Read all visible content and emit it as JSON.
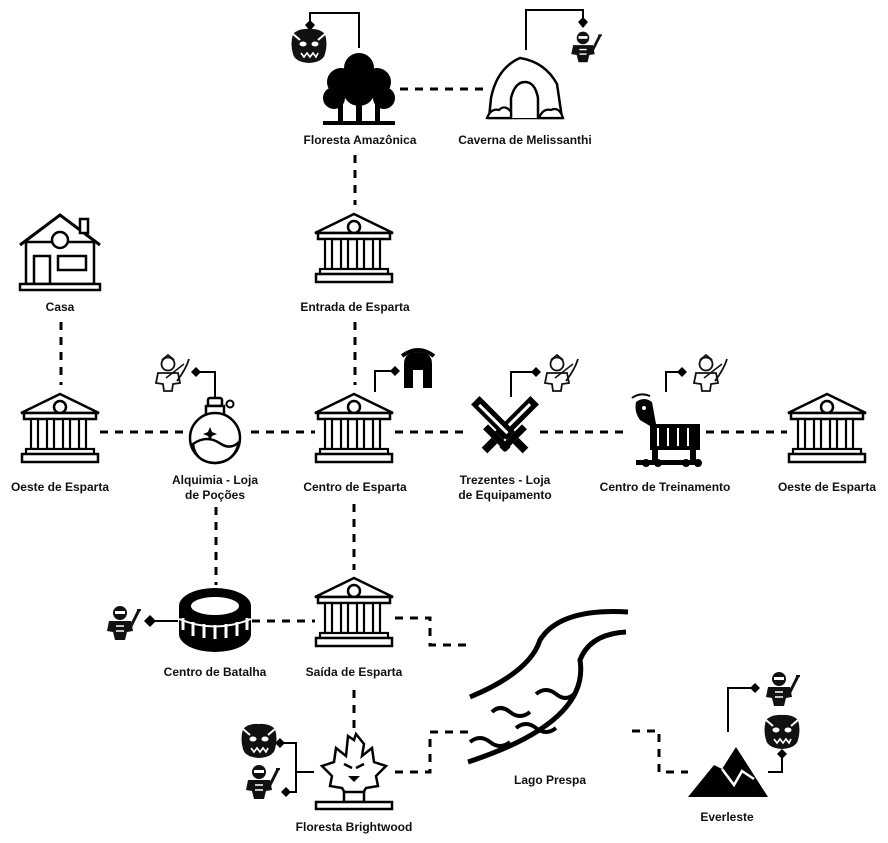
{
  "colors": {
    "ink": "#000000",
    "background": "#ffffff"
  },
  "locations": {
    "floresta_amazonica": "Floresta Amazônica",
    "caverna": "Caverna de Melissanthi",
    "casa": "Casa",
    "entrada": "Entrada de Esparta",
    "oeste_esq": "Oeste de Esparta",
    "alquimia_1": "Alquimia - Loja",
    "alquimia_2": "de Poções",
    "centro": "Centro de Esparta",
    "trezentes_1": "Trezentes - Loja",
    "trezentes_2": "de Equipamento",
    "treinamento": "Centro de Treinamento",
    "oeste_dir": "Oeste de Esparta",
    "batalha": "Centro de Batalha",
    "saida": "Saída de Esparta",
    "lago": "Lago Prespa",
    "everleste": "Everleste",
    "brightwood": "Floresta Brightwood"
  },
  "icons": {
    "forest": "tree-icon",
    "cave": "cave-icon",
    "house": "house-icon",
    "temple": "temple-icon",
    "potion": "potion-icon",
    "swords": "crossed-swords-icon",
    "trojan_horse": "trojan-horse-icon",
    "colosseum": "colosseum-icon",
    "river": "river-icon",
    "mountain": "mountain-icon",
    "fire_tree": "burning-tree-icon",
    "helmet": "spartan-helmet-icon",
    "monster": "monster-icon",
    "warrior": "warrior-icon",
    "archer": "archer-icon"
  }
}
